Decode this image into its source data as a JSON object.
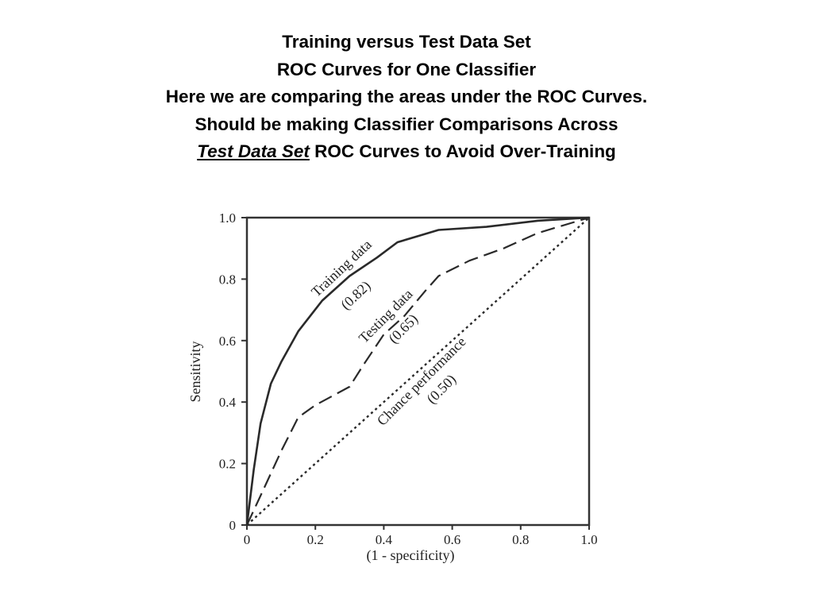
{
  "slide": {
    "title_lines": [
      "Training versus Test Data Set",
      "ROC Curves for One Classifier",
      "Here we are comparing the areas under the ROC Curves.",
      "Should be making Classifier Comparisons Across"
    ],
    "last_line_emphasis": "Test Data Set",
    "last_line_rest": " ROC Curves to Avoid Over-Training"
  },
  "chart_data": {
    "type": "line",
    "xlabel": "(1 - specificity)",
    "ylabel": "Sensitivity",
    "xlim": [
      0,
      1.0
    ],
    "ylim": [
      0,
      1.0
    ],
    "x_tick_labels": [
      "0",
      "0.2",
      "0.4",
      "0.6",
      "0.8",
      "1.0"
    ],
    "y_tick_labels": [
      "0",
      "0.2",
      "0.4",
      "0.6",
      "0.8",
      "1.0"
    ],
    "grid": false,
    "legend": "none",
    "series": [
      {
        "name": "Training data",
        "annotation_label": "Training data",
        "annotation_value": "(0.82)",
        "line_style": "solid",
        "x": [
          0,
          0.02,
          0.04,
          0.07,
          0.1,
          0.15,
          0.22,
          0.3,
          0.38,
          0.44,
          0.5,
          0.56,
          0.7,
          0.85,
          1.0
        ],
        "y": [
          0,
          0.18,
          0.33,
          0.46,
          0.53,
          0.63,
          0.73,
          0.81,
          0.87,
          0.92,
          0.94,
          0.96,
          0.97,
          0.99,
          1.0
        ]
      },
      {
        "name": "Testing data",
        "annotation_label": "Testing data",
        "annotation_value": "(0.65)",
        "line_style": "dashed",
        "x": [
          0,
          0.05,
          0.1,
          0.15,
          0.2,
          0.3,
          0.34,
          0.4,
          0.46,
          0.52,
          0.56,
          0.65,
          0.75,
          0.85,
          1.0
        ],
        "y": [
          0,
          0.12,
          0.24,
          0.35,
          0.39,
          0.45,
          0.52,
          0.62,
          0.68,
          0.76,
          0.81,
          0.86,
          0.9,
          0.95,
          1.0
        ]
      },
      {
        "name": "Chance performance",
        "annotation_label": "Chance performance",
        "annotation_value": "(0.50)",
        "line_style": "dotted",
        "x": [
          0,
          1.0
        ],
        "y": [
          0,
          1.0
        ]
      }
    ]
  }
}
